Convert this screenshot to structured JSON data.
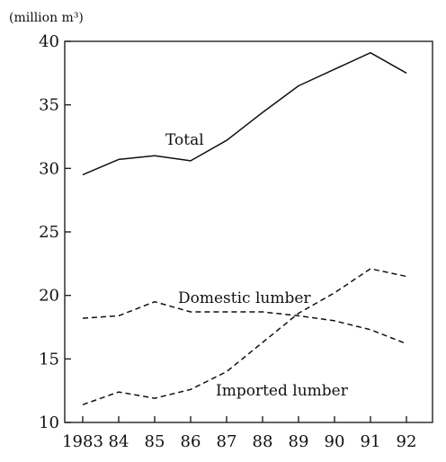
{
  "chart_data": {
    "type": "line",
    "unit_label": "(million m³)",
    "x": [
      "1983",
      "84",
      "85",
      "86",
      "87",
      "88",
      "89",
      "90",
      "91",
      "92"
    ],
    "y_ticks": [
      10,
      15,
      20,
      25,
      30,
      35,
      40
    ],
    "ylim": [
      10,
      40
    ],
    "grid": false,
    "series": [
      {
        "name": "Total",
        "style": "solid",
        "values": [
          29.5,
          30.7,
          31.0,
          30.6,
          32.2,
          34.4,
          36.5,
          37.8,
          39.1,
          37.5
        ]
      },
      {
        "name": "Domestic lumber",
        "style": "dashed",
        "values": [
          18.2,
          18.4,
          19.5,
          18.7,
          18.7,
          18.7,
          18.4,
          18.0,
          17.3,
          16.2
        ]
      },
      {
        "name": "Imported lumber",
        "style": "dashed",
        "values": [
          11.4,
          12.4,
          11.9,
          12.6,
          14.0,
          16.3,
          18.6,
          20.2,
          22.1,
          21.5
        ]
      }
    ]
  }
}
